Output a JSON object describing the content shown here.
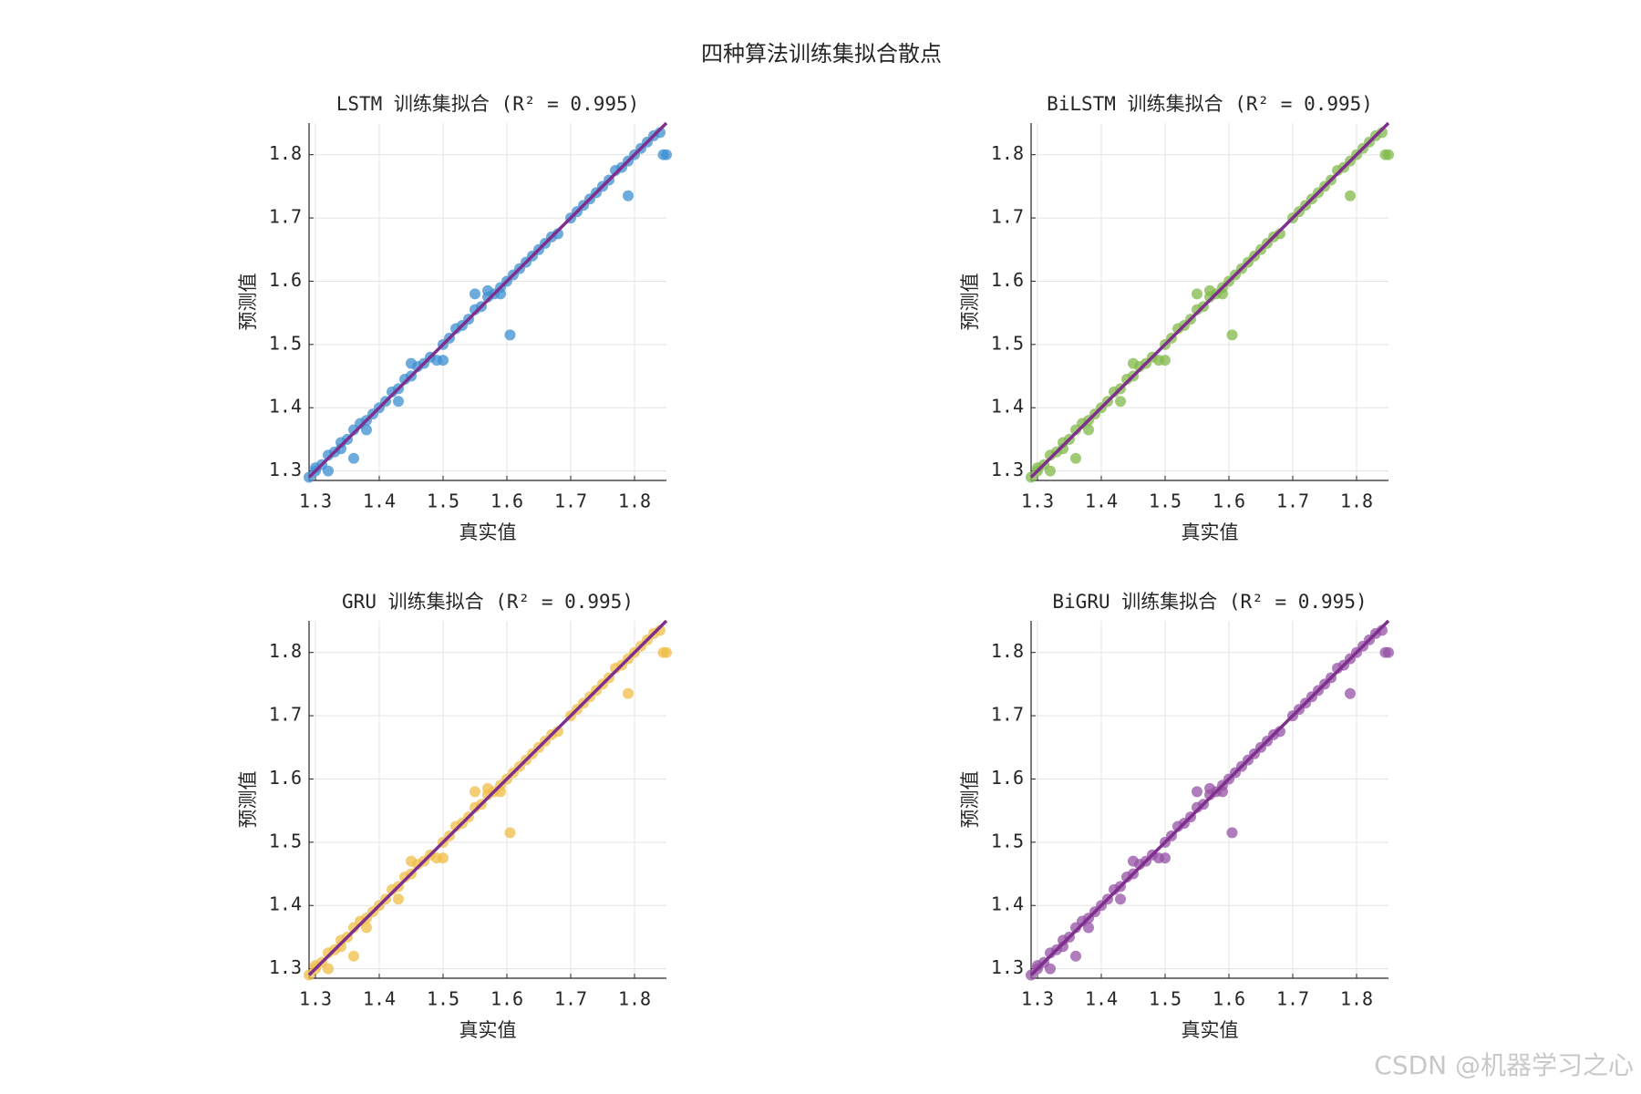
{
  "title": "四种算法训练集拟合散点",
  "watermark": "CSDN @机器学习之心",
  "chart_data": [
    {
      "type": "scatter",
      "title": "LSTM 训练集拟合 (R² = 0.995)",
      "xlabel": "真实值",
      "ylabel": "预测值",
      "color": "#3d8fd1",
      "x": [
        1.29,
        1.3,
        1.31,
        1.32,
        1.33,
        1.34,
        1.35,
        1.36,
        1.37,
        1.38,
        1.39,
        1.4,
        1.41,
        1.42,
        1.43,
        1.44,
        1.45,
        1.46,
        1.47,
        1.48,
        1.5,
        1.51,
        1.52,
        1.53,
        1.54,
        1.55,
        1.56,
        1.57,
        1.58,
        1.59,
        1.6,
        1.61,
        1.62,
        1.63,
        1.64,
        1.65,
        1.66,
        1.67,
        1.68,
        1.7,
        1.71,
        1.72,
        1.73,
        1.74,
        1.75,
        1.76,
        1.77,
        1.78,
        1.79,
        1.8,
        1.81,
        1.82,
        1.83,
        1.84,
        1.79,
        1.605,
        1.36,
        1.3,
        1.32,
        1.845,
        1.85,
        1.59,
        1.43,
        1.49,
        1.5,
        1.38,
        1.55,
        1.57,
        1.45,
        1.34
      ],
      "y": [
        1.29,
        1.305,
        1.31,
        1.325,
        1.33,
        1.345,
        1.35,
        1.365,
        1.375,
        1.38,
        1.39,
        1.4,
        1.41,
        1.425,
        1.43,
        1.445,
        1.45,
        1.465,
        1.47,
        1.48,
        1.5,
        1.51,
        1.525,
        1.53,
        1.54,
        1.555,
        1.56,
        1.575,
        1.58,
        1.59,
        1.6,
        1.61,
        1.62,
        1.63,
        1.64,
        1.65,
        1.66,
        1.67,
        1.675,
        1.7,
        1.71,
        1.72,
        1.73,
        1.74,
        1.75,
        1.76,
        1.775,
        1.78,
        1.79,
        1.8,
        1.81,
        1.82,
        1.83,
        1.835,
        1.735,
        1.515,
        1.32,
        1.3,
        1.3,
        1.8,
        1.8,
        1.58,
        1.41,
        1.475,
        1.475,
        1.365,
        1.58,
        1.585,
        1.47,
        1.335
      ],
      "fit_line": {
        "x": [
          1.29,
          1.85
        ],
        "y": [
          1.29,
          1.85
        ],
        "color": "#7e2f8e"
      },
      "xlim": [
        1.29,
        1.85
      ],
      "ylim": [
        1.285,
        1.85
      ],
      "xticks": [
        1.3,
        1.4,
        1.5,
        1.6,
        1.7,
        1.8
      ],
      "yticks": [
        1.3,
        1.4,
        1.5,
        1.6,
        1.7,
        1.8
      ],
      "grid": true
    },
    {
      "type": "scatter",
      "title": "BiLSTM 训练集拟合 (R² = 0.995)",
      "xlabel": "真实值",
      "ylabel": "预测值",
      "color": "#82b84a",
      "x": [
        1.29,
        1.3,
        1.31,
        1.32,
        1.33,
        1.34,
        1.35,
        1.36,
        1.37,
        1.38,
        1.39,
        1.4,
        1.41,
        1.42,
        1.43,
        1.44,
        1.45,
        1.46,
        1.47,
        1.48,
        1.5,
        1.51,
        1.52,
        1.53,
        1.54,
        1.55,
        1.56,
        1.57,
        1.58,
        1.59,
        1.6,
        1.61,
        1.62,
        1.63,
        1.64,
        1.65,
        1.66,
        1.67,
        1.68,
        1.7,
        1.71,
        1.72,
        1.73,
        1.74,
        1.75,
        1.76,
        1.77,
        1.78,
        1.79,
        1.8,
        1.81,
        1.82,
        1.83,
        1.84,
        1.79,
        1.605,
        1.36,
        1.3,
        1.32,
        1.845,
        1.85,
        1.59,
        1.43,
        1.49,
        1.5,
        1.38,
        1.55,
        1.57,
        1.45,
        1.34
      ],
      "y": [
        1.29,
        1.305,
        1.31,
        1.325,
        1.33,
        1.345,
        1.35,
        1.365,
        1.375,
        1.38,
        1.39,
        1.4,
        1.41,
        1.425,
        1.43,
        1.445,
        1.45,
        1.465,
        1.47,
        1.48,
        1.5,
        1.51,
        1.525,
        1.53,
        1.54,
        1.555,
        1.56,
        1.575,
        1.58,
        1.59,
        1.6,
        1.61,
        1.62,
        1.63,
        1.64,
        1.65,
        1.66,
        1.67,
        1.675,
        1.7,
        1.71,
        1.72,
        1.73,
        1.74,
        1.75,
        1.76,
        1.775,
        1.78,
        1.79,
        1.8,
        1.81,
        1.82,
        1.83,
        1.835,
        1.735,
        1.515,
        1.32,
        1.3,
        1.3,
        1.8,
        1.8,
        1.58,
        1.41,
        1.475,
        1.475,
        1.365,
        1.58,
        1.585,
        1.47,
        1.335
      ],
      "fit_line": {
        "x": [
          1.29,
          1.85
        ],
        "y": [
          1.29,
          1.85
        ],
        "color": "#7e2f8e"
      },
      "xlim": [
        1.29,
        1.85
      ],
      "ylim": [
        1.285,
        1.85
      ],
      "xticks": [
        1.3,
        1.4,
        1.5,
        1.6,
        1.7,
        1.8
      ],
      "yticks": [
        1.3,
        1.4,
        1.5,
        1.6,
        1.7,
        1.8
      ],
      "grid": true
    },
    {
      "type": "scatter",
      "title": "GRU 训练集拟合 (R² = 0.995)",
      "xlabel": "真实值",
      "ylabel": "预测值",
      "color": "#efbd45",
      "x": [
        1.29,
        1.3,
        1.31,
        1.32,
        1.33,
        1.34,
        1.35,
        1.36,
        1.37,
        1.38,
        1.39,
        1.4,
        1.41,
        1.42,
        1.43,
        1.44,
        1.45,
        1.46,
        1.47,
        1.48,
        1.5,
        1.51,
        1.52,
        1.53,
        1.54,
        1.55,
        1.56,
        1.57,
        1.58,
        1.59,
        1.6,
        1.61,
        1.62,
        1.63,
        1.64,
        1.65,
        1.66,
        1.67,
        1.68,
        1.7,
        1.71,
        1.72,
        1.73,
        1.74,
        1.75,
        1.76,
        1.77,
        1.78,
        1.79,
        1.8,
        1.81,
        1.82,
        1.83,
        1.84,
        1.79,
        1.605,
        1.36,
        1.3,
        1.32,
        1.845,
        1.85,
        1.59,
        1.43,
        1.49,
        1.5,
        1.38,
        1.55,
        1.57,
        1.45,
        1.34
      ],
      "y": [
        1.29,
        1.305,
        1.31,
        1.325,
        1.33,
        1.345,
        1.35,
        1.365,
        1.375,
        1.38,
        1.39,
        1.4,
        1.41,
        1.425,
        1.43,
        1.445,
        1.45,
        1.465,
        1.47,
        1.48,
        1.5,
        1.51,
        1.525,
        1.53,
        1.54,
        1.555,
        1.56,
        1.575,
        1.58,
        1.59,
        1.6,
        1.61,
        1.62,
        1.63,
        1.64,
        1.65,
        1.66,
        1.67,
        1.675,
        1.7,
        1.71,
        1.72,
        1.73,
        1.74,
        1.75,
        1.76,
        1.775,
        1.78,
        1.79,
        1.8,
        1.81,
        1.82,
        1.83,
        1.835,
        1.735,
        1.515,
        1.32,
        1.3,
        1.3,
        1.8,
        1.8,
        1.58,
        1.41,
        1.475,
        1.475,
        1.365,
        1.58,
        1.585,
        1.47,
        1.335
      ],
      "fit_line": {
        "x": [
          1.29,
          1.85
        ],
        "y": [
          1.29,
          1.85
        ],
        "color": "#7e2f8e"
      },
      "xlim": [
        1.29,
        1.85
      ],
      "ylim": [
        1.285,
        1.85
      ],
      "xticks": [
        1.3,
        1.4,
        1.5,
        1.6,
        1.7,
        1.8
      ],
      "yticks": [
        1.3,
        1.4,
        1.5,
        1.6,
        1.7,
        1.8
      ],
      "grid": true
    },
    {
      "type": "scatter",
      "title": "BiGRU 训练集拟合 (R² = 0.995)",
      "xlabel": "真实值",
      "ylabel": "预测值",
      "color": "#9652a6",
      "x": [
        1.29,
        1.3,
        1.31,
        1.32,
        1.33,
        1.34,
        1.35,
        1.36,
        1.37,
        1.38,
        1.39,
        1.4,
        1.41,
        1.42,
        1.43,
        1.44,
        1.45,
        1.46,
        1.47,
        1.48,
        1.5,
        1.51,
        1.52,
        1.53,
        1.54,
        1.55,
        1.56,
        1.57,
        1.58,
        1.59,
        1.6,
        1.61,
        1.62,
        1.63,
        1.64,
        1.65,
        1.66,
        1.67,
        1.68,
        1.7,
        1.71,
        1.72,
        1.73,
        1.74,
        1.75,
        1.76,
        1.77,
        1.78,
        1.79,
        1.8,
        1.81,
        1.82,
        1.83,
        1.84,
        1.79,
        1.605,
        1.36,
        1.3,
        1.32,
        1.845,
        1.85,
        1.59,
        1.43,
        1.49,
        1.5,
        1.38,
        1.55,
        1.57,
        1.45,
        1.34
      ],
      "y": [
        1.29,
        1.305,
        1.31,
        1.325,
        1.33,
        1.345,
        1.35,
        1.365,
        1.375,
        1.38,
        1.39,
        1.4,
        1.41,
        1.425,
        1.43,
        1.445,
        1.45,
        1.465,
        1.47,
        1.48,
        1.5,
        1.51,
        1.525,
        1.53,
        1.54,
        1.555,
        1.56,
        1.575,
        1.58,
        1.59,
        1.6,
        1.61,
        1.62,
        1.63,
        1.64,
        1.65,
        1.66,
        1.67,
        1.675,
        1.7,
        1.71,
        1.72,
        1.73,
        1.74,
        1.75,
        1.76,
        1.775,
        1.78,
        1.79,
        1.8,
        1.81,
        1.82,
        1.83,
        1.835,
        1.735,
        1.515,
        1.32,
        1.3,
        1.3,
        1.8,
        1.8,
        1.58,
        1.41,
        1.475,
        1.475,
        1.365,
        1.58,
        1.585,
        1.47,
        1.335
      ],
      "fit_line": {
        "x": [
          1.29,
          1.85
        ],
        "y": [
          1.29,
          1.85
        ],
        "color": "#7e2f8e"
      },
      "xlim": [
        1.29,
        1.85
      ],
      "ylim": [
        1.285,
        1.85
      ],
      "xticks": [
        1.3,
        1.4,
        1.5,
        1.6,
        1.7,
        1.8
      ],
      "yticks": [
        1.3,
        1.4,
        1.5,
        1.6,
        1.7,
        1.8
      ],
      "grid": true
    }
  ]
}
